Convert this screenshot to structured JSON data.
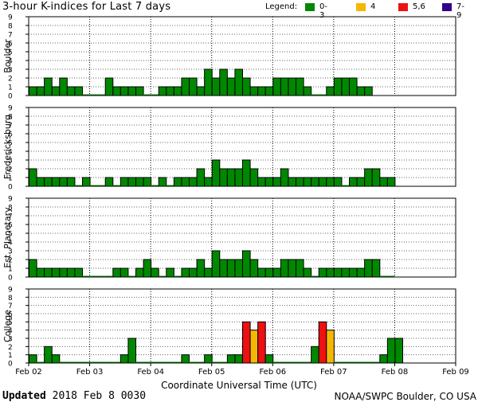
{
  "header": {
    "title": "3-hour K-indices for Last 7 days",
    "legend_label": "Legend:",
    "legend": [
      {
        "label": "0-3",
        "color": "#008800"
      },
      {
        "label": "4",
        "color": "#f5b800"
      },
      {
        "label": "5,6",
        "color": "#ee1111"
      },
      {
        "label": "7-9",
        "color": "#330088"
      }
    ]
  },
  "chart_data": {
    "type": "bar",
    "xlabel": "Coordinate Universal Time (UTC)",
    "x_tick_labels": [
      "Feb 02",
      "Feb 03",
      "Feb 04",
      "Feb 05",
      "Feb 06",
      "Feb 07",
      "Feb 08",
      "Feb 09"
    ],
    "ylim": [
      0,
      9
    ],
    "y_tick_labels": [
      "0",
      "1",
      "2",
      "3",
      "4",
      "5",
      "6",
      "7",
      "8",
      "9"
    ],
    "bars_per_day": 8,
    "grid": "dotted",
    "panels": [
      {
        "name": "Boulder",
        "values": [
          1,
          1,
          2,
          1,
          2,
          1,
          1,
          0,
          0,
          0,
          2,
          1,
          1,
          1,
          1,
          0,
          0,
          1,
          1,
          1,
          2,
          2,
          1,
          3,
          2,
          3,
          2,
          3,
          2,
          1,
          1,
          1,
          2,
          2,
          2,
          2,
          1,
          0,
          0,
          1,
          2,
          2,
          2,
          1,
          1,
          null,
          null,
          null,
          null,
          null,
          null,
          null,
          null,
          null,
          null,
          null
        ]
      },
      {
        "name": "Fredericksburg",
        "values": [
          2,
          1,
          1,
          1,
          1,
          1,
          0,
          1,
          0,
          0,
          1,
          0,
          1,
          1,
          1,
          1,
          0,
          1,
          0,
          1,
          1,
          1,
          2,
          1,
          3,
          2,
          2,
          2,
          3,
          2,
          1,
          1,
          1,
          2,
          1,
          1,
          1,
          1,
          1,
          1,
          1,
          0,
          1,
          1,
          2,
          2,
          1,
          1,
          null,
          null,
          null,
          null,
          null,
          null,
          null,
          null
        ]
      },
      {
        "name": "Est. Planetary",
        "values": [
          2,
          1,
          1,
          1,
          1,
          1,
          1,
          0,
          0,
          0,
          0,
          1,
          1,
          0,
          1,
          2,
          1,
          0,
          1,
          0,
          1,
          1,
          2,
          1,
          3,
          2,
          2,
          2,
          3,
          2,
          1,
          1,
          1,
          2,
          2,
          2,
          1,
          0,
          1,
          1,
          1,
          1,
          1,
          1,
          2,
          2,
          0,
          0,
          null,
          null,
          null,
          null,
          null,
          null,
          null,
          null
        ]
      },
      {
        "name": "College",
        "values": [
          1,
          0,
          2,
          1,
          0,
          0,
          0,
          0,
          0,
          0,
          0,
          0,
          1,
          3,
          0,
          0,
          0,
          0,
          0,
          0,
          1,
          0,
          0,
          1,
          0,
          0,
          1,
          1,
          5,
          4,
          5,
          1,
          0,
          0,
          0,
          0,
          0,
          2,
          5,
          4,
          0,
          0,
          0,
          0,
          0,
          0,
          1,
          3,
          3,
          null,
          null,
          null,
          null,
          null,
          null,
          null
        ]
      }
    ]
  },
  "footer": {
    "updated_label": "Updated",
    "updated_value": " 2018 Feb  8 0030",
    "credit": "NOAA/SWPC Boulder, CO USA"
  }
}
